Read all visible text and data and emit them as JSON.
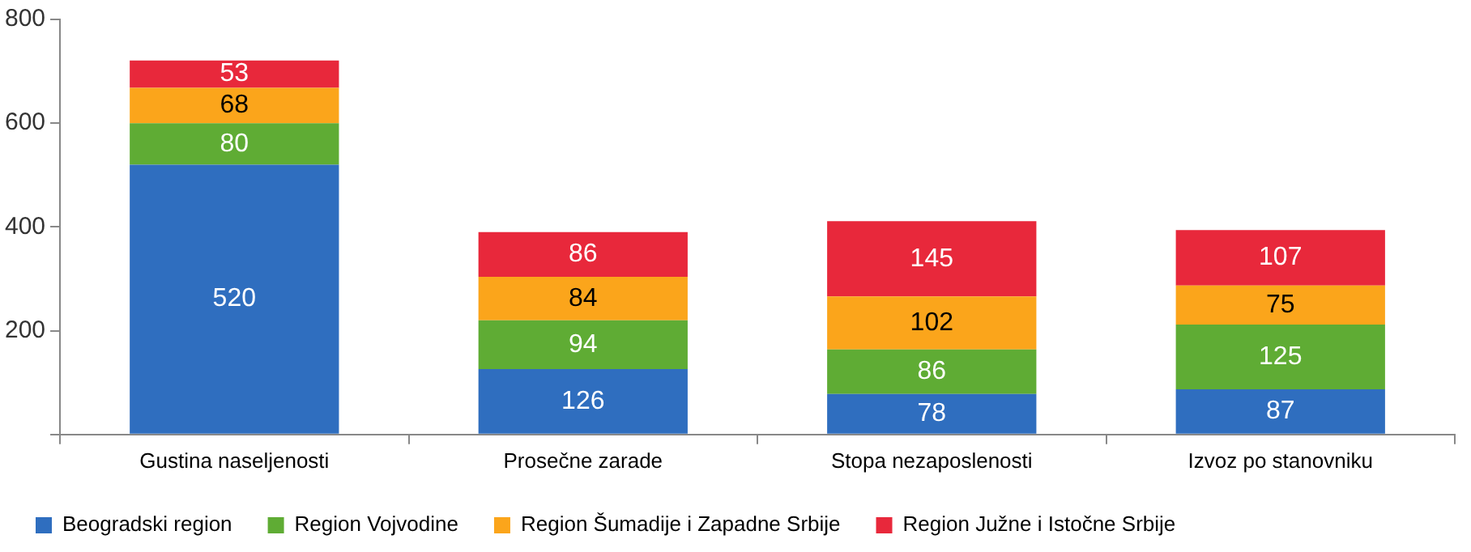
{
  "chart_data": {
    "type": "bar",
    "stacked": true,
    "categories": [
      "Gustina naseljenosti",
      "Prosečne zarade",
      "Stopa nezaposlenosti",
      "Izvoz po stanovniku"
    ],
    "series": [
      {
        "name": "Beogradski region",
        "color": "#2f6ebf",
        "values": [
          520,
          126,
          78,
          87
        ]
      },
      {
        "name": "Region Vojvodine",
        "color": "#5fac34",
        "values": [
          80,
          94,
          86,
          125
        ]
      },
      {
        "name": "Region Šumadije i Zapadne Srbije",
        "color": "#fba51b",
        "values": [
          68,
          84,
          102,
          75
        ]
      },
      {
        "name": "Region Južne i Istočne Srbije",
        "color": "#e8283b",
        "values": [
          53,
          86,
          145,
          107
        ]
      }
    ],
    "ylim": [
      0,
      800
    ],
    "yticks": [
      {
        "value": 0,
        "label": null
      },
      200,
      400,
      600,
      800
    ],
    "data_labels": true,
    "legend": "bottom"
  }
}
